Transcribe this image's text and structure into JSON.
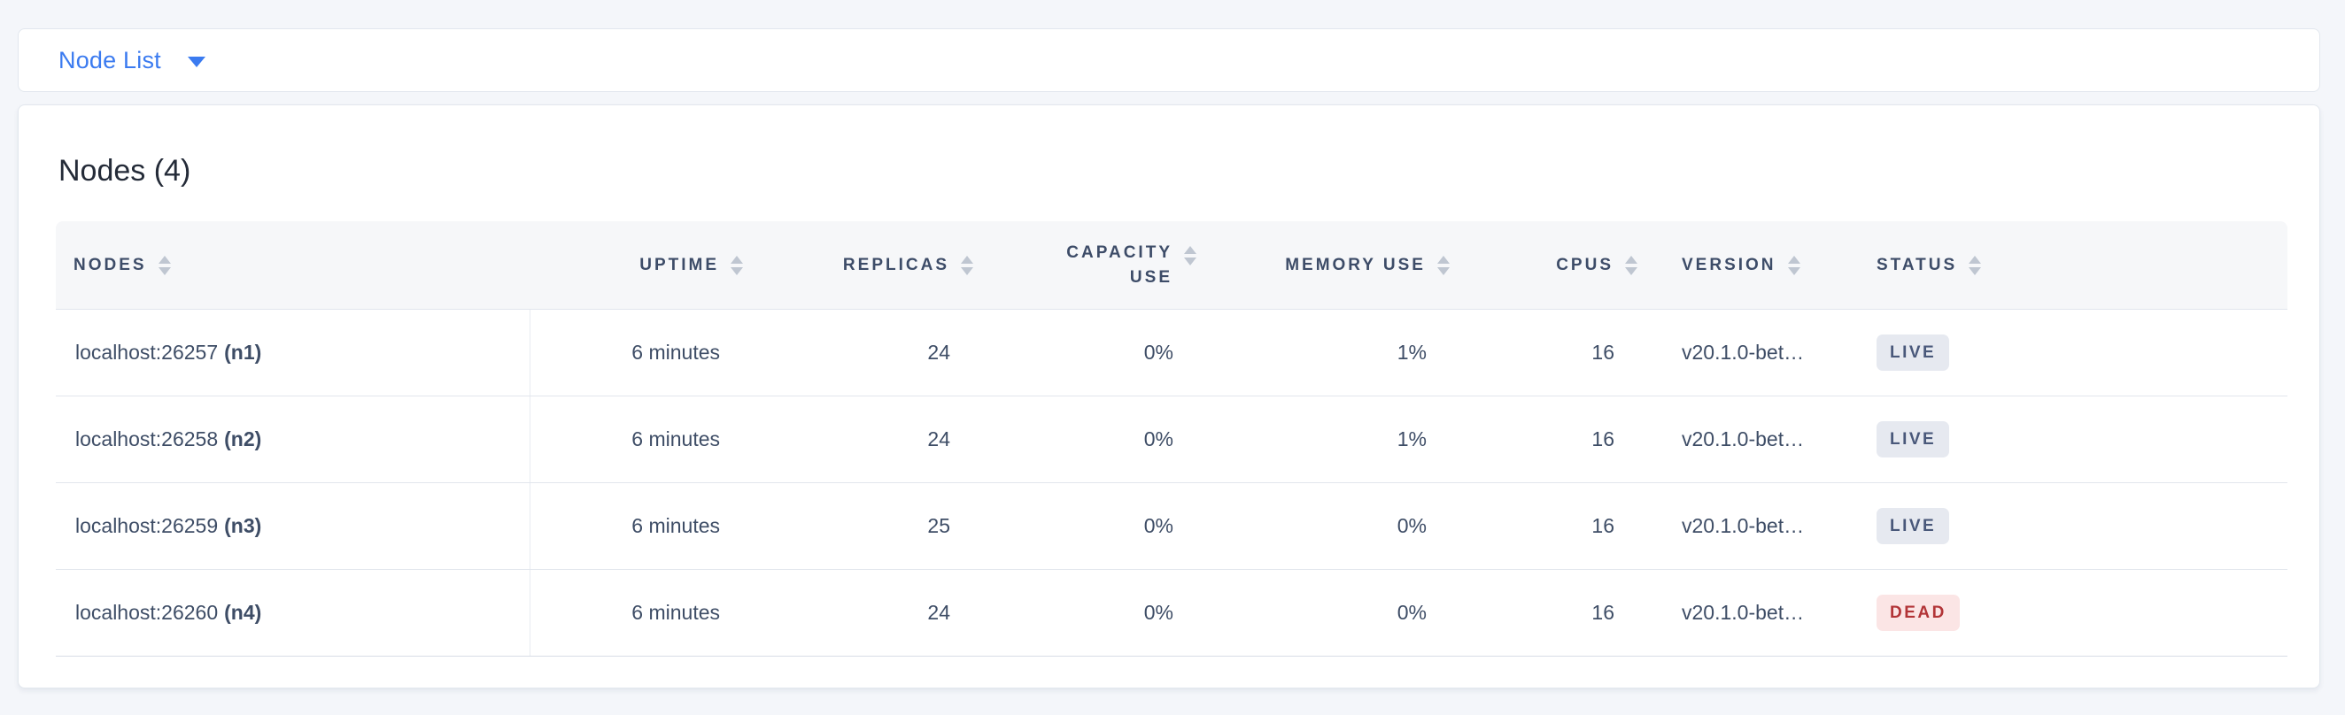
{
  "topbar": {
    "dropdown_label": "Node List"
  },
  "main": {
    "title": "Nodes (4)",
    "table": {
      "columns": [
        {
          "label": "NODES",
          "align": "left"
        },
        {
          "label": "UPTIME",
          "align": "right"
        },
        {
          "label": "REPLICAS",
          "align": "right"
        },
        {
          "label": "CAPACITY USE",
          "align": "right"
        },
        {
          "label": "MEMORY USE",
          "align": "right"
        },
        {
          "label": "CPUS",
          "align": "right"
        },
        {
          "label": "VERSION",
          "align": "left"
        },
        {
          "label": "STATUS",
          "align": "left"
        }
      ],
      "rows": [
        {
          "node_address": "localhost:26257",
          "node_id": "(n1)",
          "uptime": "6 minutes",
          "replicas": "24",
          "capacity_use": "0%",
          "memory_use": "1%",
          "cpus": "16",
          "version": "v20.1.0-bet…",
          "status": "LIVE"
        },
        {
          "node_address": "localhost:26258",
          "node_id": "(n2)",
          "uptime": "6 minutes",
          "replicas": "24",
          "capacity_use": "0%",
          "memory_use": "1%",
          "cpus": "16",
          "version": "v20.1.0-bet…",
          "status": "LIVE"
        },
        {
          "node_address": "localhost:26259",
          "node_id": "(n3)",
          "uptime": "6 minutes",
          "replicas": "25",
          "capacity_use": "0%",
          "memory_use": "0%",
          "cpus": "16",
          "version": "v20.1.0-bet…",
          "status": "LIVE"
        },
        {
          "node_address": "localhost:26260",
          "node_id": "(n4)",
          "uptime": "6 minutes",
          "replicas": "24",
          "capacity_use": "0%",
          "memory_use": "0%",
          "cpus": "16",
          "version": "v20.1.0-bet…",
          "status": "DEAD"
        }
      ]
    }
  },
  "colors": {
    "accent_blue": "#3b7bf0",
    "status_live_bg": "#e6e9f0",
    "status_live_text": "#49587a",
    "status_dead_bg": "#fbe5e5",
    "status_dead_text": "#b23437"
  }
}
